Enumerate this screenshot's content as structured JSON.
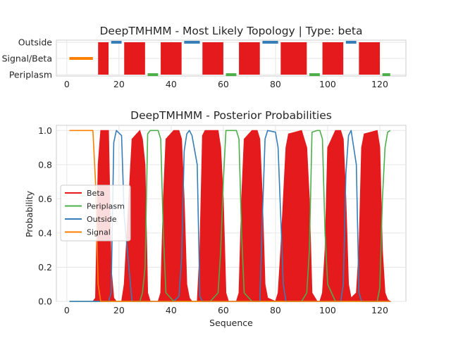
{
  "chart_data": [
    {
      "type": "area",
      "title": "DeepTMHMM - Most Likely Topology | Type: beta",
      "xlabel": "",
      "ylabel": "",
      "xlim": [
        -4,
        130
      ],
      "xticks": [
        0,
        20,
        40,
        60,
        80,
        100,
        120
      ],
      "y_categories": [
        "Outside",
        "Signal/Beta",
        "Periplasm"
      ],
      "grid": true,
      "colors": {
        "Beta": "#e41a1c",
        "Periplasm": "#4daf4a",
        "Outside": "#377eb8",
        "Signal": "#ff7f00"
      },
      "segments": [
        {
          "state": "Signal",
          "start": 1,
          "end": 10
        },
        {
          "state": "Beta",
          "start": 12,
          "end": 16
        },
        {
          "state": "Outside",
          "start": 17,
          "end": 21
        },
        {
          "state": "Beta",
          "start": 22,
          "end": 30
        },
        {
          "state": "Periplasm",
          "start": 31,
          "end": 35
        },
        {
          "state": "Beta",
          "start": 36,
          "end": 44
        },
        {
          "state": "Outside",
          "start": 45,
          "end": 51
        },
        {
          "state": "Beta",
          "start": 52,
          "end": 60
        },
        {
          "state": "Periplasm",
          "start": 61,
          "end": 65
        },
        {
          "state": "Beta",
          "start": 66,
          "end": 74
        },
        {
          "state": "Outside",
          "start": 75,
          "end": 81
        },
        {
          "state": "Beta",
          "start": 82,
          "end": 92
        },
        {
          "state": "Periplasm",
          "start": 93,
          "end": 97
        },
        {
          "state": "Beta",
          "start": 98,
          "end": 106
        },
        {
          "state": "Outside",
          "start": 107,
          "end": 111
        },
        {
          "state": "Beta",
          "start": 112,
          "end": 120
        },
        {
          "state": "Periplasm",
          "start": 121,
          "end": 124
        }
      ]
    },
    {
      "type": "line",
      "title": "DeepTMHMM - Posterior Probabilities",
      "xlabel": "Sequence",
      "ylabel": "Probability",
      "xlim": [
        -4,
        130
      ],
      "ylim": [
        0,
        1.03
      ],
      "xticks": [
        0,
        20,
        40,
        60,
        80,
        100,
        120
      ],
      "yticks": [
        "0.0",
        "0.2",
        "0.4",
        "0.6",
        "0.8",
        "1.0"
      ],
      "grid": true,
      "legend": "center-left",
      "x": [
        1,
        10,
        11,
        12,
        13,
        16,
        17,
        18,
        19,
        21,
        22,
        25,
        28,
        29,
        30,
        31,
        32,
        34,
        35,
        36,
        37,
        38,
        41,
        43,
        44,
        45,
        46,
        47,
        48,
        50,
        51,
        52,
        53,
        55,
        58,
        59,
        60,
        61,
        62,
        64,
        65,
        66,
        67,
        68,
        71,
        73,
        74,
        75,
        76,
        77,
        80,
        81,
        82,
        83,
        84,
        85,
        90,
        92,
        93,
        94,
        96,
        97,
        98,
        99,
        100,
        103,
        105,
        106,
        107,
        108,
        109,
        111,
        112,
        113,
        114,
        119,
        120,
        121,
        122,
        123,
        124
      ],
      "series": [
        {
          "name": "Beta",
          "values": [
            0,
            0,
            0.02,
            0.8,
            1.0,
            1.0,
            0.2,
            0.02,
            0,
            0,
            0.1,
            0.95,
            1.0,
            0.95,
            0.8,
            0.05,
            0,
            0,
            0,
            0.05,
            0.6,
            0.95,
            1.0,
            1.0,
            0.95,
            0.6,
            0.1,
            0.02,
            0,
            0,
            0.3,
            0.97,
            1.0,
            1.0,
            1.0,
            0.9,
            0.6,
            0.05,
            0,
            0,
            0,
            0.05,
            0.6,
            0.95,
            1.0,
            1.0,
            0.95,
            0.6,
            0.1,
            0.02,
            0,
            0.05,
            0.3,
            0.6,
            0.9,
            0.98,
            1.0,
            0.9,
            0.6,
            0.05,
            0,
            0,
            0.05,
            0.3,
            0.9,
            1.0,
            1.0,
            0.95,
            0.6,
            0.1,
            0.02,
            0.05,
            0.3,
            0.9,
            0.98,
            1.0,
            0.9,
            0.3,
            0.05,
            0.01,
            0
          ]
        },
        {
          "name": "Periplasm",
          "values": [
            0,
            0,
            0,
            0,
            0,
            0,
            0,
            0,
            0,
            0,
            0,
            0,
            0,
            0.05,
            0.2,
            0.98,
            1.0,
            1.0,
            1.0,
            0.95,
            0.4,
            0.05,
            0,
            0,
            0,
            0,
            0,
            0,
            0,
            0,
            0,
            0,
            0,
            0,
            0.05,
            0.3,
            0.7,
            1.0,
            1.0,
            1.0,
            1.0,
            0.95,
            0.4,
            0.05,
            0,
            0,
            0,
            0,
            0,
            0,
            0,
            0,
            0,
            0,
            0,
            0,
            0,
            0.05,
            0.3,
            0.99,
            1.0,
            1.0,
            0.95,
            0.4,
            0.1,
            0,
            0,
            0,
            0,
            0,
            0,
            0,
            0,
            0,
            0,
            0,
            0.08,
            0.6,
            0.9,
            0.99,
            1.0
          ]
        },
        {
          "name": "Outside",
          "values": [
            0,
            0,
            0,
            0,
            0,
            0,
            0.05,
            0.93,
            1.0,
            0.97,
            0.5,
            0,
            0,
            0,
            0,
            0,
            0,
            0,
            0,
            0,
            0,
            0,
            0,
            0.03,
            0.25,
            0.88,
            0.98,
            1.0,
            0.97,
            0.8,
            0.03,
            0,
            0,
            0,
            0,
            0,
            0,
            0,
            0,
            0,
            0,
            0,
            0,
            0,
            0,
            0,
            0,
            0.5,
            0.95,
            1.0,
            0.99,
            0.9,
            0.5,
            0.1,
            0,
            0,
            0,
            0,
            0,
            0,
            0,
            0,
            0,
            0,
            0,
            0,
            0,
            0.1,
            0.75,
            0.97,
            1.0,
            0.8,
            0.05,
            0,
            0,
            0,
            0,
            0,
            0,
            0,
            0
          ]
        },
        {
          "name": "Signal",
          "values": [
            1.0,
            1.0,
            0.7,
            0.1,
            0,
            0,
            0,
            0,
            0,
            0,
            0,
            0,
            0,
            0,
            0,
            0,
            0,
            0,
            0,
            0,
            0,
            0,
            0,
            0,
            0,
            0,
            0,
            0,
            0,
            0,
            0,
            0,
            0,
            0,
            0,
            0,
            0,
            0,
            0,
            0,
            0,
            0,
            0,
            0,
            0,
            0,
            0,
            0,
            0,
            0,
            0,
            0,
            0,
            0,
            0,
            0,
            0,
            0,
            0,
            0,
            0,
            0,
            0,
            0,
            0,
            0,
            0,
            0,
            0,
            0,
            0,
            0,
            0,
            0,
            0,
            0,
            0,
            0,
            0,
            0,
            0
          ]
        }
      ]
    }
  ]
}
